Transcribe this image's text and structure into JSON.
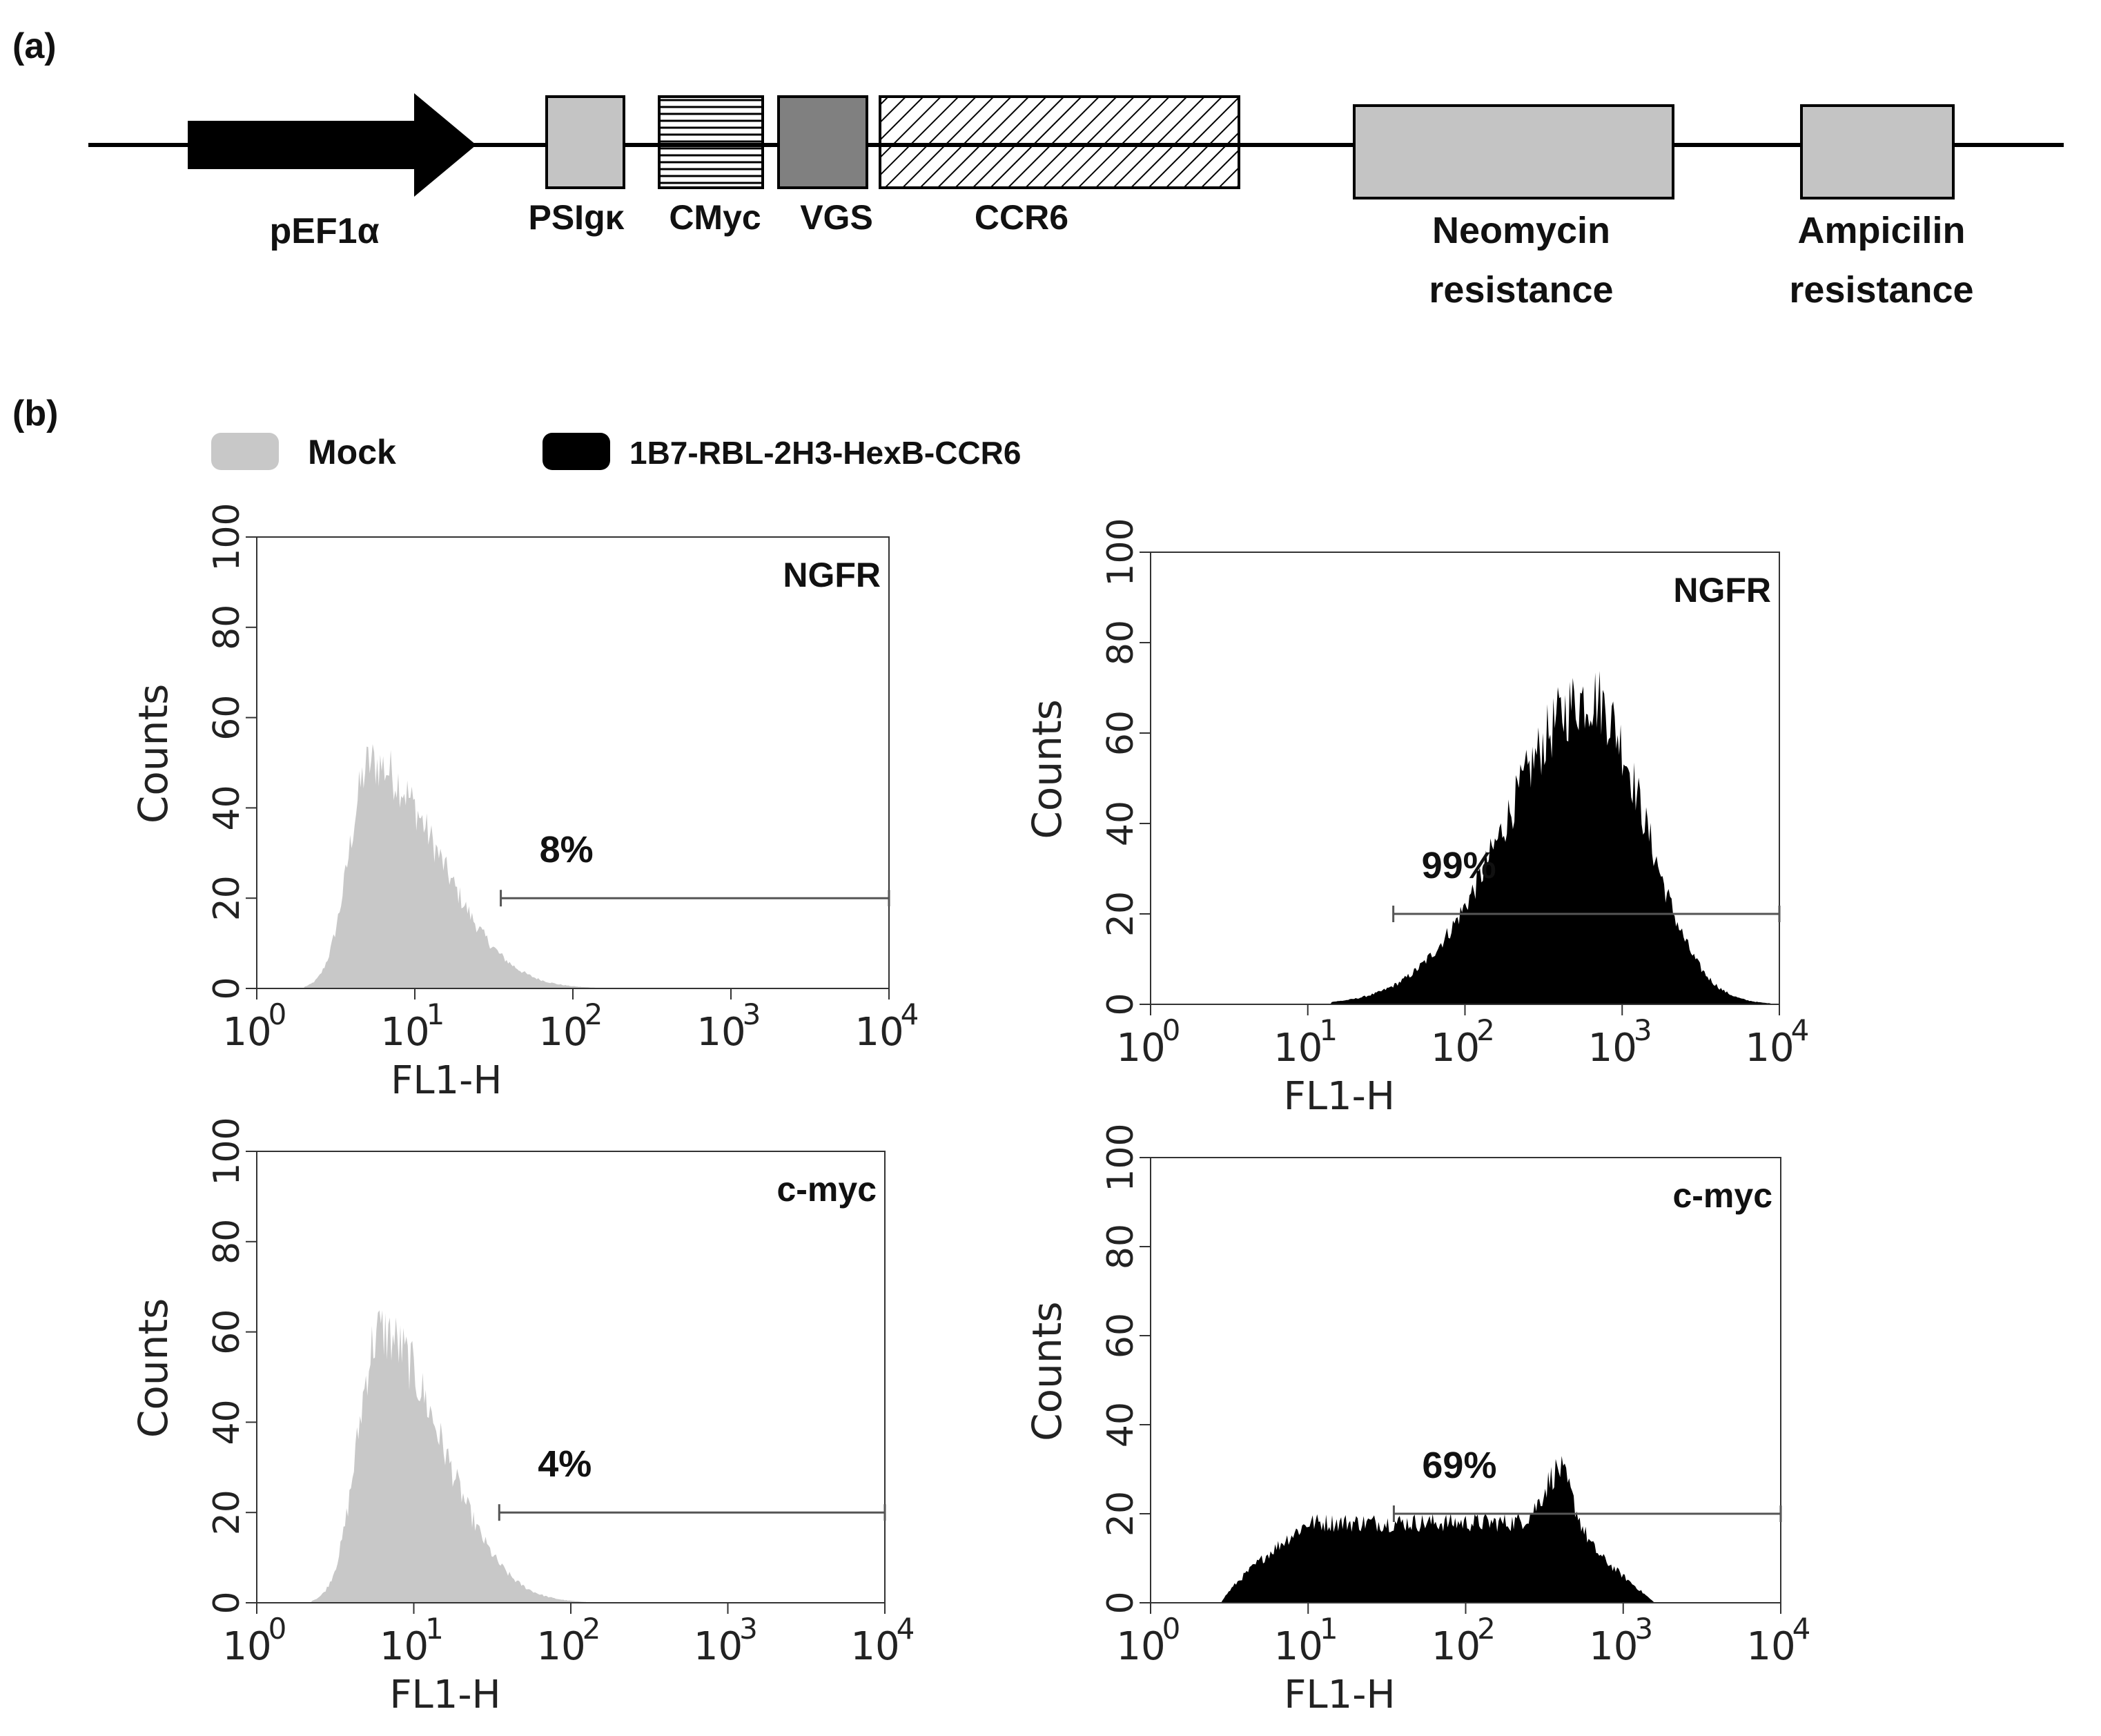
{
  "panel_a": {
    "label": "(a)",
    "elements": [
      {
        "name": "promoter",
        "label": "pEF1α"
      },
      {
        "name": "psigk",
        "label": "PSIgκ"
      },
      {
        "name": "cmyc",
        "label": "CMyc"
      },
      {
        "name": "vgs",
        "label": "VGS"
      },
      {
        "name": "ccr6",
        "label": "CCR6"
      },
      {
        "name": "neomycin",
        "label_line1": "Neomycin",
        "label_line2": "resistance"
      },
      {
        "name": "ampicilin",
        "label_line1": "Ampicilin",
        "label_line2": "resistance"
      }
    ],
    "colors": {
      "line": "#000000",
      "box_fill": "#c4c4c4",
      "vgs_fill": "#808080",
      "arrow": "#000000"
    }
  },
  "panel_b": {
    "label": "(b)",
    "legend": [
      {
        "label": "Mock",
        "color": "#c8c8c8"
      },
      {
        "label": "1B7-RBL-2H3-HexB-CCR6",
        "color": "#000000"
      }
    ]
  },
  "chart_data": [
    {
      "type": "area",
      "id": "mock-ngfr",
      "marker": "NGFR",
      "gate_percent": "8%",
      "xlabel": "FL1-H",
      "ylabel": "Counts",
      "xscale": "log",
      "xlim": [
        1,
        10000
      ],
      "ylim": [
        0,
        100
      ],
      "xticks": [
        "10",
        "10",
        "10",
        "10",
        "10"
      ],
      "xtick_exponents": [
        "0",
        "1",
        "2",
        "3",
        "4"
      ],
      "yticks": [
        "0",
        "20",
        "40",
        "60",
        "80",
        "100"
      ],
      "color": "#c8c8c8",
      "gate_range": [
        35,
        10000
      ],
      "gate_y": 20,
      "peak_log10": 0.72,
      "peak_count": 50,
      "min_log10": 0.3,
      "max_log10": 2.15
    },
    {
      "type": "area",
      "id": "ccr6-ngfr",
      "marker": "NGFR",
      "gate_percent": "99%",
      "xlabel": "FL1-H",
      "ylabel": "Counts",
      "xscale": "log",
      "xlim": [
        1,
        10000
      ],
      "ylim": [
        0,
        100
      ],
      "xticks": [
        "10",
        "10",
        "10",
        "10",
        "10"
      ],
      "xtick_exponents": [
        "0",
        "1",
        "2",
        "3",
        "4"
      ],
      "yticks": [
        "0",
        "20",
        "40",
        "60",
        "80",
        "100"
      ],
      "color": "#000000",
      "gate_range": [
        35,
        10000
      ],
      "gate_y": 20,
      "peak_log10": 2.8,
      "peak_count": 68,
      "min_log10": 1.15,
      "max_log10": 3.95
    },
    {
      "type": "area",
      "id": "mock-cmyc",
      "marker": "c-myc",
      "gate_percent": "4%",
      "xlabel": "FL1-H",
      "ylabel": "Counts",
      "xscale": "log",
      "xlim": [
        1,
        10000
      ],
      "ylim": [
        0,
        100
      ],
      "xticks": [
        "10",
        "10",
        "10",
        "10",
        "10"
      ],
      "xtick_exponents": [
        "0",
        "1",
        "2",
        "3",
        "4"
      ],
      "yticks": [
        "0",
        "20",
        "40",
        "60",
        "80",
        "100"
      ],
      "color": "#c8c8c8",
      "gate_range": [
        35,
        10000
      ],
      "gate_y": 20,
      "peak_log10": 0.78,
      "peak_count": 60,
      "min_log10": 0.35,
      "max_log10": 2.1
    },
    {
      "type": "area",
      "id": "ccr6-cmyc",
      "marker": "c-myc",
      "gate_percent": "69%",
      "xlabel": "FL1-H",
      "ylabel": "Counts",
      "xscale": "log",
      "xlim": [
        1,
        10000
      ],
      "ylim": [
        0,
        100
      ],
      "xticks": [
        "10",
        "10",
        "10",
        "10",
        "10"
      ],
      "xtick_exponents": [
        "0",
        "1",
        "2",
        "3",
        "4"
      ],
      "yticks": [
        "0",
        "20",
        "40",
        "60",
        "80",
        "100"
      ],
      "color": "#000000",
      "gate_range": [
        35,
        10000
      ],
      "gate_y": 20,
      "peak_log10": 2.6,
      "peak_count": 30,
      "min_log10": 0.45,
      "max_log10": 3.2,
      "plateau_count": 18
    }
  ]
}
